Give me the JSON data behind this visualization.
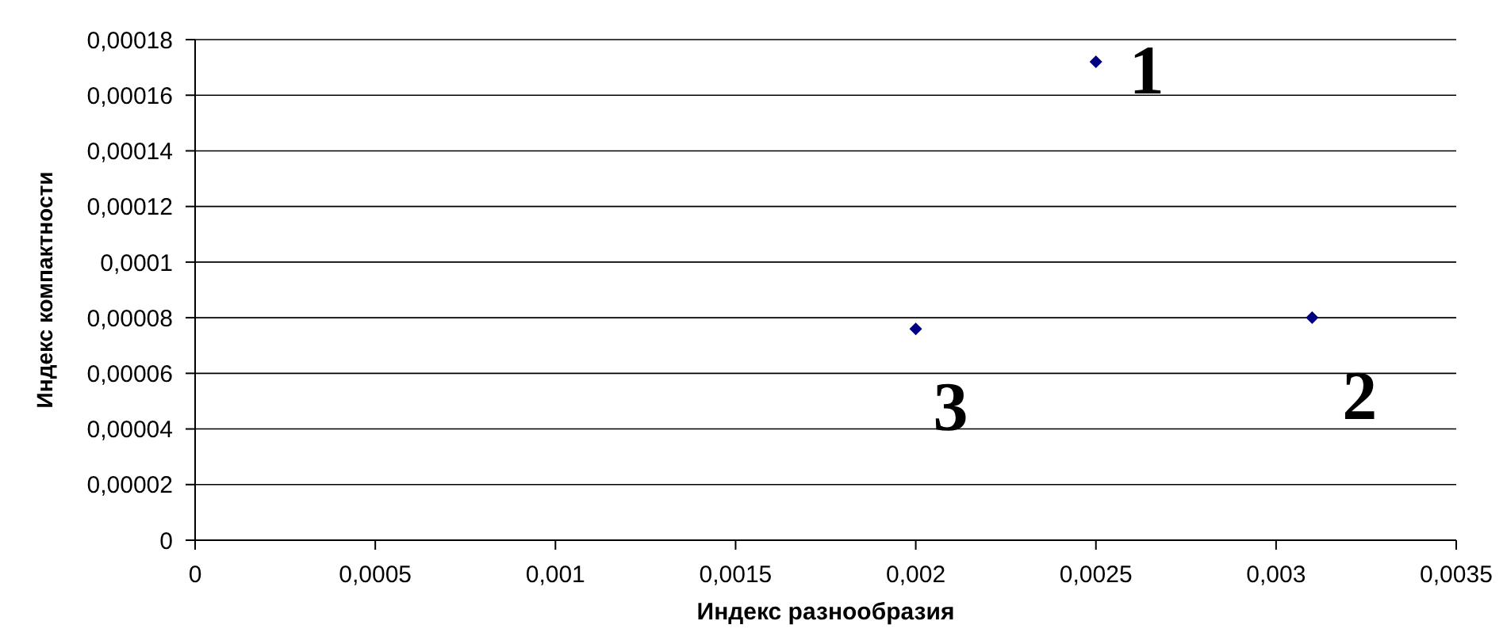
{
  "chart_data": {
    "type": "scatter",
    "xlabel": "Индекс разнообразия",
    "ylabel": "Индекс компактности",
    "x": [
      0.0025,
      0.0031,
      0.002
    ],
    "series": [
      {
        "color": "#000080",
        "values": [
          0.000172,
          8e-05,
          7.6e-05
        ]
      }
    ],
    "xlim": [
      0,
      0.0035
    ],
    "ylim": [
      0,
      0.00018
    ],
    "xticks": [
      0,
      {
        "value": 0.0005,
        "label": "0,0005"
      },
      {
        "value": 0.001,
        "label": "0,001"
      },
      {
        "value": 0.0015,
        "label": "0,0015"
      },
      {
        "value": 0.002,
        "label": "0,002"
      },
      {
        "value": 0.0025,
        "label": "0,0025"
      },
      {
        "value": 0.003,
        "label": "0,003"
      },
      {
        "value": 0.0035,
        "label": "0,0035"
      }
    ],
    "yticks": [
      0,
      {
        "value": 2e-05,
        "label": "0,00002"
      },
      {
        "value": 4e-05,
        "label": "0,00004"
      },
      {
        "value": 6e-05,
        "label": "0,00006"
      },
      {
        "value": 8e-05,
        "label": "0,00008"
      },
      {
        "value": 0.0001,
        "label": "0,0001"
      },
      {
        "value": 0.00012,
        "label": "0,00012"
      },
      {
        "value": 0.00014,
        "label": "0,00014"
      },
      {
        "value": 0.00016,
        "label": "0,00016"
      },
      {
        "value": 0.00018,
        "label": "0,00018"
      }
    ],
    "grid": "y",
    "marker": "diamond",
    "annotations": [
      {
        "text": "1",
        "x": 0.0025,
        "y": 0.000172
      },
      {
        "text": "2",
        "x": 0.0031,
        "y": 8e-05
      },
      {
        "text": "3",
        "x": 0.002,
        "y": 7.6e-05
      }
    ]
  }
}
